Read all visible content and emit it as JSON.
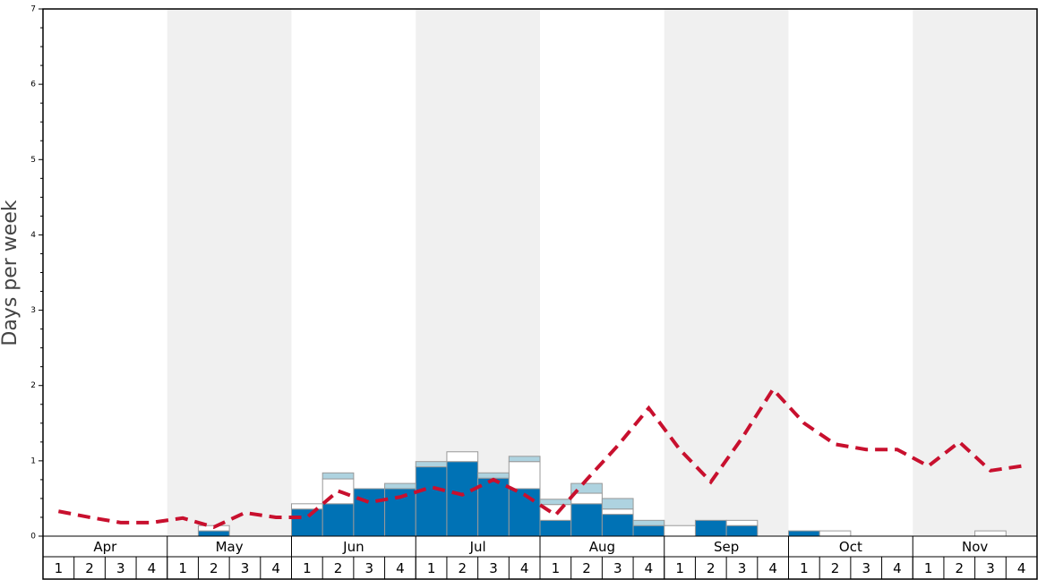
{
  "chart_data": {
    "type": "bar",
    "stacked": true,
    "y_label": "Days per week",
    "months": [
      "Apr",
      "May",
      "Jun",
      "Jul",
      "Aug",
      "Sep",
      "Oct",
      "Nov"
    ],
    "categories": [
      "1",
      "2",
      "3",
      "4",
      "1",
      "2",
      "3",
      "4",
      "1",
      "2",
      "3",
      "4",
      "1",
      "2",
      "3",
      "4",
      "1",
      "2",
      "3",
      "4",
      "1",
      "2",
      "3",
      "4",
      "1",
      "2",
      "3",
      "4",
      "1",
      "2",
      "3",
      "4"
    ],
    "ylim": [
      0,
      7
    ],
    "yticks": [
      0,
      1,
      2,
      3,
      4,
      5,
      6,
      7
    ],
    "shade_color": "#f0f0f0",
    "series": [
      {
        "color": "#0072b5",
        "values": [
          0,
          0,
          0,
          0,
          0,
          0.07,
          0,
          0,
          0.36,
          0.43,
          0.63,
          0.63,
          0.92,
          0.99,
          0.77,
          0.63,
          0.21,
          0.43,
          0.29,
          0.14,
          0,
          0.21,
          0.14,
          0,
          0.07,
          0,
          0,
          0,
          0,
          0,
          0,
          0
        ]
      },
      {
        "color": "#ffffff",
        "values": [
          0,
          0,
          0,
          0,
          0,
          0.07,
          0,
          0,
          0.07,
          0.33,
          0,
          0,
          0,
          0.13,
          0,
          0.36,
          0.21,
          0.14,
          0.07,
          0,
          0.14,
          0,
          0.07,
          0,
          0,
          0.07,
          0,
          0,
          0,
          0,
          0.07,
          0
        ]
      },
      {
        "color": "#aed3e0",
        "values": [
          0,
          0,
          0,
          0,
          0,
          0,
          0,
          0,
          0,
          0.08,
          0,
          0.07,
          0.07,
          0,
          0.07,
          0.07,
          0.07,
          0.13,
          0.14,
          0.07,
          0,
          0,
          0,
          0,
          0,
          0,
          0,
          0,
          0,
          0,
          0,
          0
        ]
      }
    ],
    "line": {
      "color": "#c8102e",
      "dashed": true,
      "values": [
        0.33,
        0.25,
        0.18,
        0.18,
        0.24,
        0.12,
        0.31,
        0.25,
        0.25,
        0.6,
        0.45,
        0.52,
        0.65,
        0.55,
        0.75,
        0.55,
        0.28,
        0.75,
        1.2,
        1.7,
        1.15,
        0.72,
        1.3,
        1.95,
        1.5,
        1.22,
        1.15,
        1.15,
        0.93,
        1.25,
        0.87,
        0.93
      ]
    }
  }
}
